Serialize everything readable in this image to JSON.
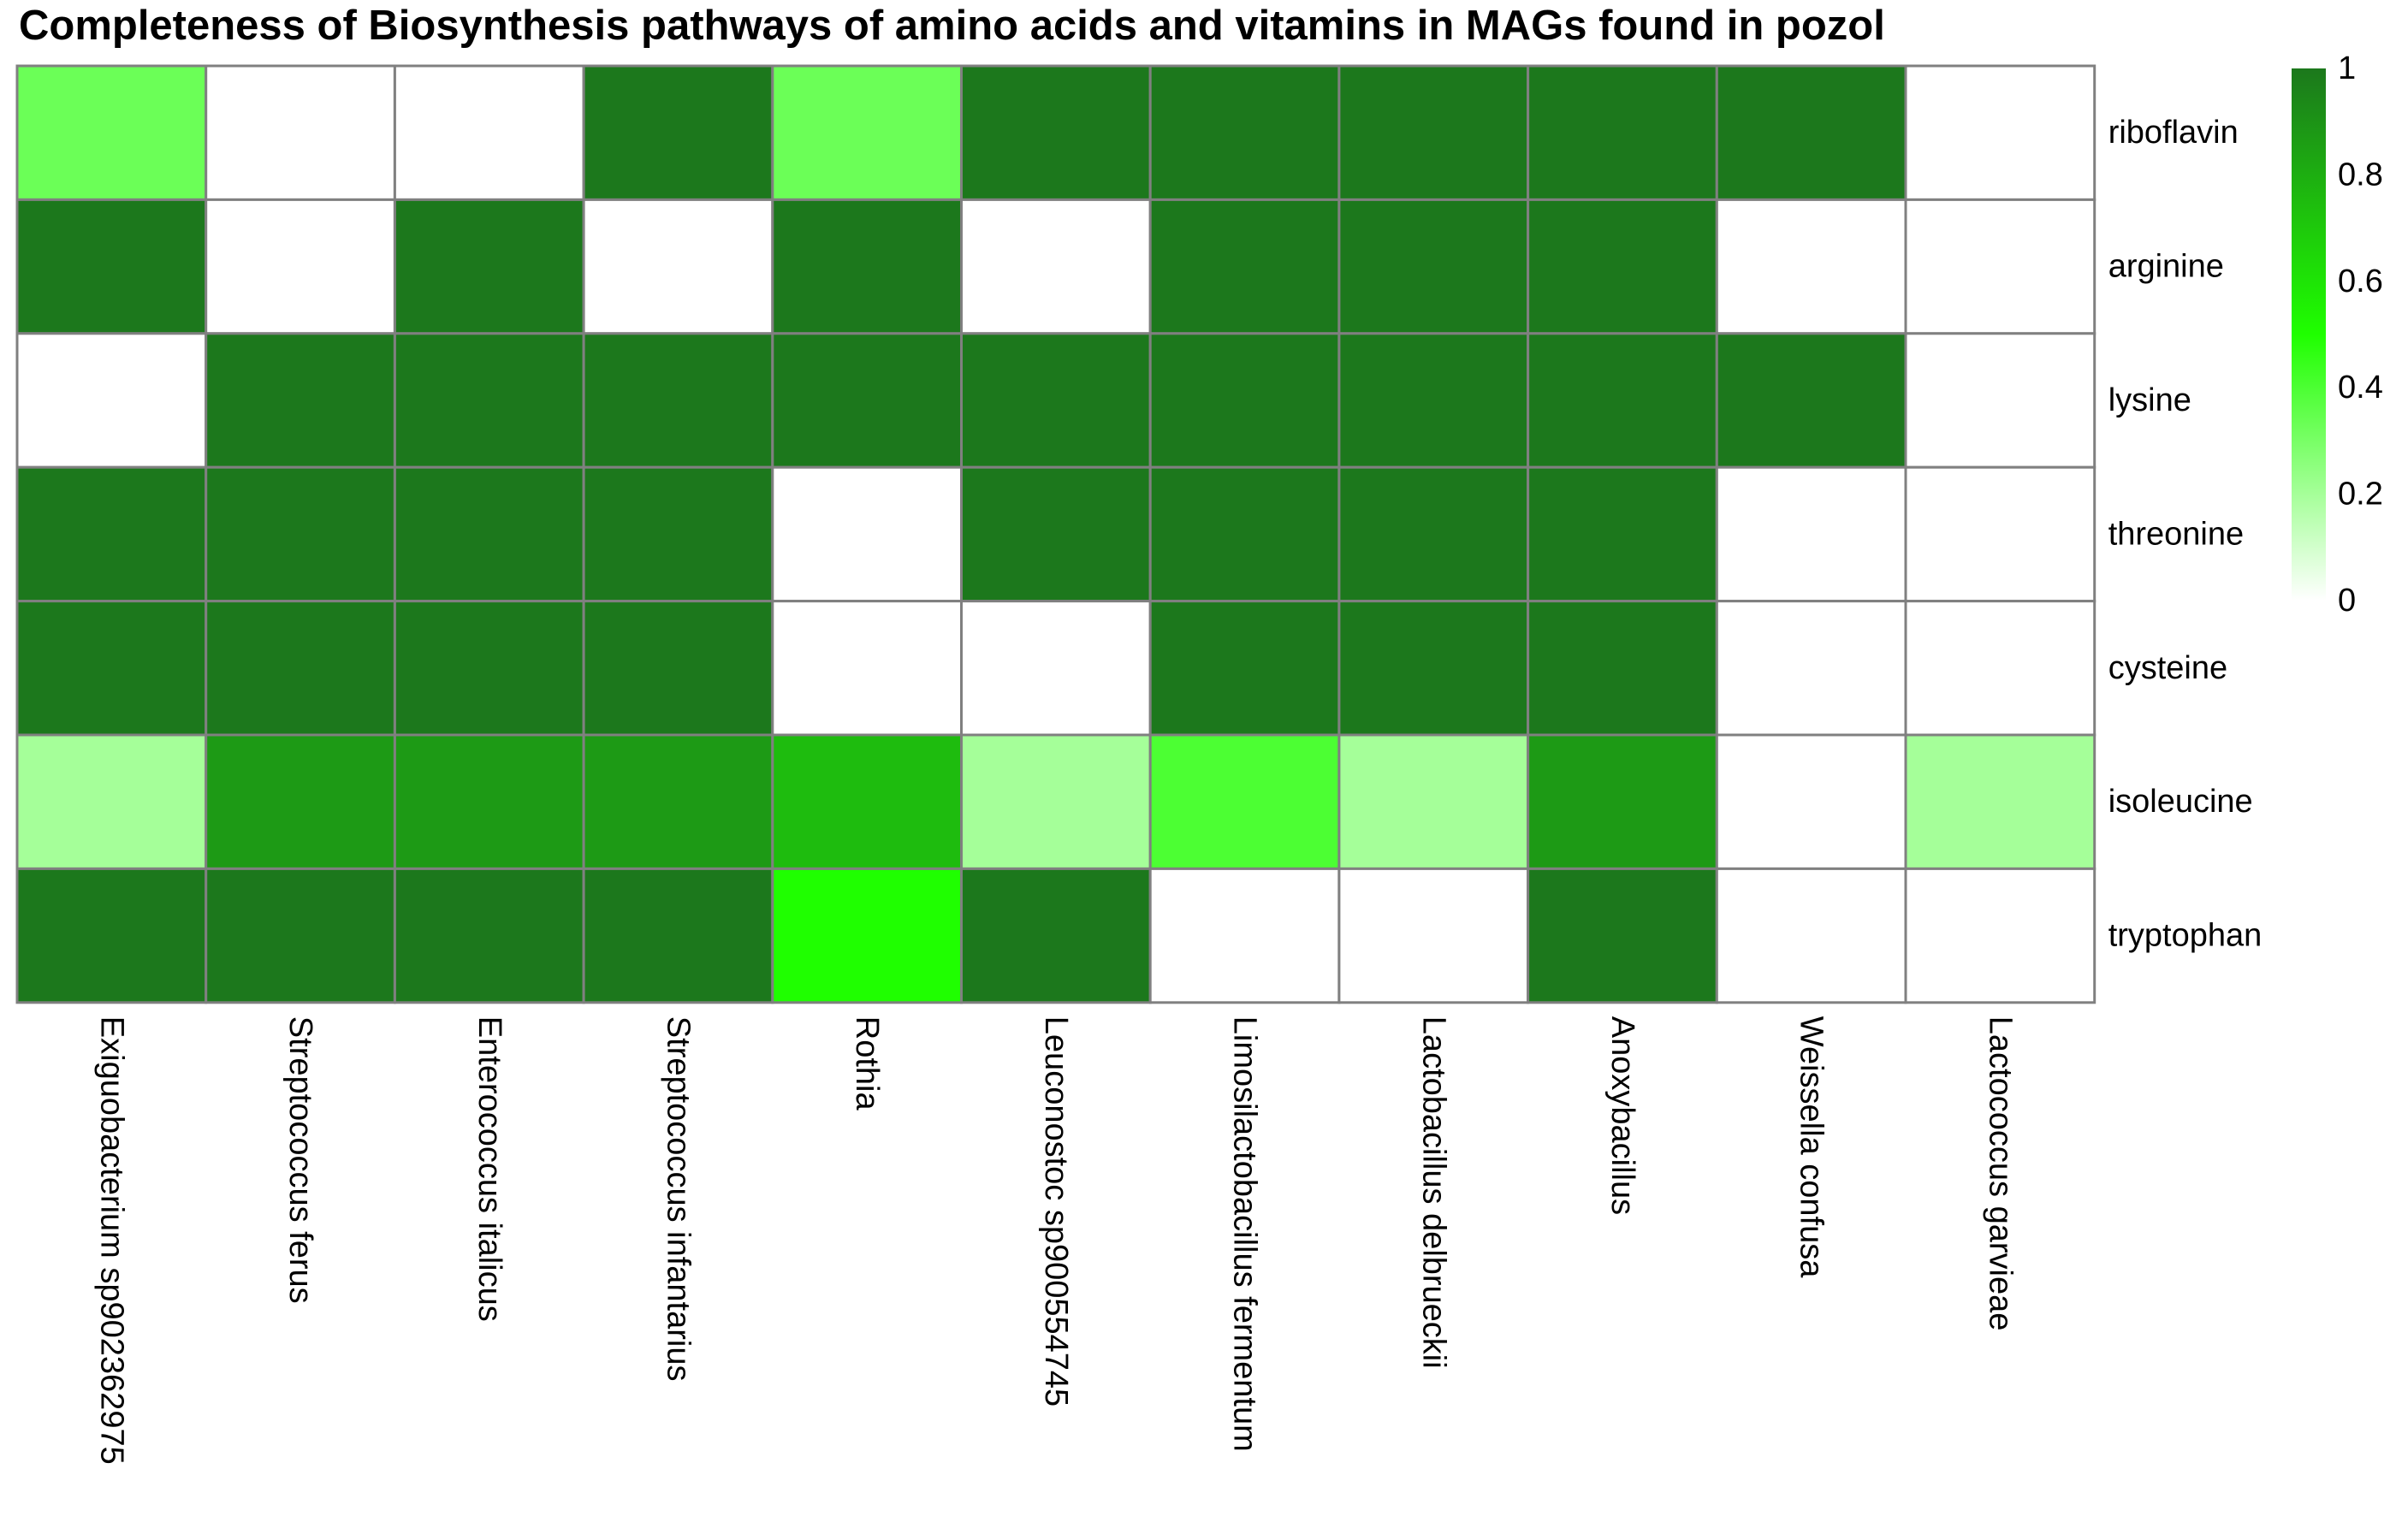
{
  "chart_data": {
    "type": "heatmap",
    "title": "Completeness of Biosynthesis pathways of amino acids and vitamins in MAGs found in pozol",
    "rows": [
      "riboflavin",
      "arginine",
      "lysine",
      "threonine",
      "cysteine",
      "isoleucine",
      "tryptophan"
    ],
    "columns": [
      "Exiguobacterium sp902362975",
      "Streptococcus ferus",
      "Enterococcus italicus",
      "Streptococcus infantarius",
      "Rothia",
      "Leuconostoc sp900554745",
      "Limosilactobacillus fermentum",
      "Lactobacillus delbrueckii",
      "Anoxybacillus",
      "Weissella confusa",
      "Lactococcus garvieae"
    ],
    "values": [
      [
        0.33,
        0,
        0,
        1,
        0.33,
        1,
        1,
        1,
        1,
        1,
        0
      ],
      [
        1,
        0,
        1,
        0,
        1,
        0,
        1,
        1,
        1,
        0,
        0
      ],
      [
        0,
        1,
        1,
        1,
        1,
        1,
        1,
        1,
        1,
        1,
        0
      ],
      [
        1,
        1,
        1,
        1,
        0,
        1,
        1,
        1,
        1,
        0,
        0
      ],
      [
        1,
        1,
        1,
        1,
        0,
        0,
        1,
        1,
        1,
        0,
        0
      ],
      [
        0.2,
        0.875,
        0.875,
        0.875,
        0.75,
        0.2,
        0.4,
        0.2,
        0.875,
        0,
        0.2
      ],
      [
        1,
        1,
        1,
        1,
        0.5,
        1,
        0,
        0,
        1,
        0,
        0
      ]
    ],
    "legend": {
      "ticks": [
        "0",
        "0.2",
        "0.4",
        "0.6",
        "0.8",
        "1"
      ],
      "range": [
        0,
        1
      ]
    },
    "colors": {
      "low": "#ffffff",
      "mid": "#1fff00",
      "high": "#1c781c",
      "gridline": "#808080"
    },
    "xlabel": "",
    "ylabel": ""
  }
}
